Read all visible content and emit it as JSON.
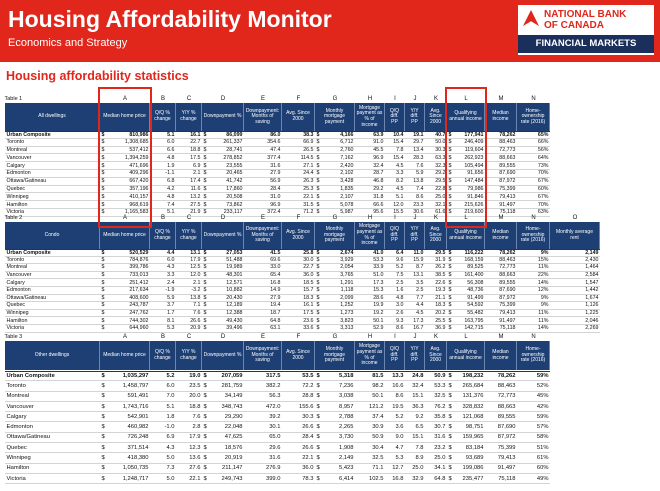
{
  "header": {
    "title": "Housing Affordability Monitor",
    "subtitle": "Economics and Strategy",
    "logo": {
      "line1": "NATIONAL BANK",
      "line2": "OF CANADA",
      "line3": "FINANCIAL MARKETS"
    }
  },
  "section_title": "Housing affordability statistics",
  "currency": "$",
  "tables": [
    {
      "label": "Table 1",
      "letters": [
        "A",
        "B",
        "C",
        "D",
        "E",
        "F",
        "G",
        "H",
        "I",
        "J",
        "K",
        "L",
        "M",
        "N"
      ],
      "columns": [
        "All dwellings",
        "Median home price",
        "Q/Q % change",
        "Y/Y % change",
        "Downpayment %",
        "Downpayment: Months of saving",
        "Avg. Since 2000",
        "Monthly mortgage payment",
        "Mortgage payment as % of income",
        "Q/Q diff. PP",
        "Y/Y diff. PP",
        "Avg. Since 2000",
        "Qualifying annual income",
        "Median income",
        "Home-ownership rate (2016)"
      ],
      "rows": [
        [
          "Urban Composite",
          "810,986",
          "5.1",
          "16.1",
          "86,099",
          "86.0",
          "38.3",
          "4,166",
          "63.9",
          "10.4",
          "19.1",
          "40.7",
          "177,941",
          "78,262",
          "65%"
        ],
        [
          "Toronto",
          "1,308,685",
          "6.0",
          "22.7",
          "261,337",
          "354.6",
          "66.9",
          "6,712",
          "91.0",
          "15.4",
          "29.7",
          "50.0",
          "246,409",
          "88,463",
          "66%"
        ],
        [
          "Montreal",
          "537,412",
          "6.6",
          "18.8",
          "28,741",
          "47.4",
          "26.5",
          "2,760",
          "45.5",
          "7.8",
          "13.4",
          "30.3",
          "119,604",
          "72,773",
          "56%"
        ],
        [
          "Vancouver",
          "1,394,259",
          "4.8",
          "17.5",
          "278,852",
          "377.4",
          "114.5",
          "7,162",
          "96.9",
          "15.4",
          "28.3",
          "63.3",
          "262,923",
          "88,663",
          "64%"
        ],
        [
          "Calgary",
          "471,696",
          "1.9",
          "6.9",
          "23,555",
          "31.6",
          "27.1",
          "2,420",
          "32.4",
          "4.5",
          "7.6",
          "32.3",
          "105,494",
          "89,555",
          "73%"
        ],
        [
          "Edmonton",
          "409,296",
          "-1.1",
          "2.1",
          "20,465",
          "27.9",
          "24.4",
          "2,102",
          "28.7",
          "3.3",
          "5.9",
          "29.2",
          "91,656",
          "87,690",
          "70%"
        ],
        [
          "Ottawa/Gatineau",
          "667,420",
          "6.8",
          "17.4",
          "41,742",
          "56.9",
          "26.3",
          "3,428",
          "46.8",
          "8.2",
          "13.8",
          "29.5",
          "147,484",
          "87,972",
          "67%"
        ],
        [
          "Quebec",
          "357,196",
          "4.2",
          "11.6",
          "17,860",
          "28.4",
          "25.3",
          "1,835",
          "29.2",
          "4.5",
          "7.4",
          "22.8",
          "79,986",
          "75,399",
          "60%"
        ],
        [
          "Winnipeg",
          "410,157",
          "4.8",
          "13.2",
          "20,508",
          "31.0",
          "22.1",
          "2,107",
          "31.8",
          "5.1",
          "8.6",
          "25.0",
          "91,846",
          "79,413",
          "67%"
        ],
        [
          "Hamilton",
          "968,619",
          "7.4",
          "27.5",
          "73,862",
          "96.9",
          "31.5",
          "5,078",
          "66.6",
          "12.0",
          "23.3",
          "32.1",
          "215,626",
          "91,497",
          "70%"
        ],
        [
          "Victoria",
          "1,165,583",
          "5.1",
          "21.9",
          "233,117",
          "372.4",
          "71.2",
          "5,987",
          "95.6",
          "15.5",
          "30.6",
          "61.6",
          "219,600",
          "75,118",
          "63%"
        ]
      ]
    },
    {
      "label": "Table 2",
      "letters": [
        "A",
        "B",
        "C",
        "D",
        "E",
        "F",
        "G",
        "H",
        "I",
        "J",
        "K",
        "L",
        "M",
        "N",
        "O"
      ],
      "columns": [
        "Condo",
        "Median home price",
        "Q/Q % change",
        "Y/Y % change",
        "Downpayment %",
        "Downpayment: Months of saving",
        "Avg. Since 2000",
        "Monthly mortgage payment",
        "Mortgage payment as % of income",
        "Q/Q diff. PP",
        "Y/Y diff. PP",
        "Avg. Since 2000",
        "Qualifying annual income",
        "Median income",
        "Home-ownership rate (2016)",
        "Monthly average rent"
      ],
      "rows": [
        [
          "Urban Composite",
          "520,529",
          "4.4",
          "13.1",
          "27,053",
          "41.5",
          "25.8",
          "2,674",
          "41.0",
          "6.4",
          "11.0",
          "29.5",
          "116,222",
          "78,262",
          "9%",
          "2,149"
        ],
        [
          "Toronto",
          "784,876",
          "6.0",
          "17.9",
          "51,488",
          "69.6",
          "30.0",
          "3,929",
          "53.3",
          "9.6",
          "15.9",
          "31.9",
          "168,159",
          "88,463",
          "15%",
          "2,430"
        ],
        [
          "Montreal",
          "399,786",
          "4.3",
          "12.5",
          "19,989",
          "33.0",
          "22.7",
          "2,054",
          "33.9",
          "5.2",
          "8.7",
          "26.2",
          "89,525",
          "72,773",
          "11%",
          "1,464"
        ],
        [
          "Vancouver",
          "733,013",
          "3.3",
          "12.0",
          "48,301",
          "65.4",
          "36.0",
          "3,765",
          "51.0",
          "7.5",
          "13.1",
          "38.5",
          "161,400",
          "88,663",
          "22%",
          "2,584"
        ],
        [
          "Calgary",
          "251,412",
          "2.4",
          "2.1",
          "12,571",
          "16.8",
          "18.5",
          "1,291",
          "17.3",
          "2.5",
          "3.5",
          "22.6",
          "56,308",
          "89,555",
          "14%",
          "1,547"
        ],
        [
          "Edmonton",
          "217,634",
          "-1.9",
          "-3.2",
          "10,882",
          "14.9",
          "15.7",
          "1,118",
          "15.3",
          "1.6",
          "2.5",
          "19.3",
          "48,736",
          "87,690",
          "12%",
          "1,442"
        ],
        [
          "Ottawa/Gatineau",
          "408,600",
          "5.9",
          "13.8",
          "20,430",
          "27.9",
          "18.3",
          "2,099",
          "28.6",
          "4.8",
          "7.7",
          "21.1",
          "91,499",
          "87,972",
          "9%",
          "1,674"
        ],
        [
          "Quebec",
          "243,787",
          "3.7",
          "7.1",
          "12,189",
          "19.4",
          "16.1",
          "1,252",
          "19.9",
          "3.0",
          "4.4",
          "18.3",
          "54,592",
          "75,399",
          "9%",
          "1,126"
        ],
        [
          "Winnipeg",
          "247,762",
          "1.7",
          "7.6",
          "12,388",
          "18.7",
          "17.5",
          "1,273",
          "19.2",
          "2.6",
          "4.5",
          "20.2",
          "55,482",
          "79,413",
          "11%",
          "1,225"
        ],
        [
          "Hamilton",
          "744,302",
          "8.1",
          "26.6",
          "49,430",
          "64.8",
          "23.6",
          "3,823",
          "50.1",
          "9.3",
          "17.3",
          "25.5",
          "163,795",
          "91,497",
          "11%",
          "2,046"
        ],
        [
          "Victoria",
          "644,960",
          "5.3",
          "20.9",
          "39,496",
          "63.1",
          "33.6",
          "3,313",
          "52.9",
          "8.6",
          "16.7",
          "36.9",
          "142,715",
          "75,118",
          "14%",
          "2,269"
        ]
      ]
    },
    {
      "label": "Table 3",
      "letters": [
        "A",
        "B",
        "C",
        "D",
        "E",
        "F",
        "G",
        "H",
        "I",
        "J",
        "K",
        "L",
        "M",
        "N"
      ],
      "columns": [
        "Other dwellings",
        "Median home price",
        "Q/Q % change",
        "Y/Y % change",
        "Downpayment %",
        "Downpayment: Months of saving",
        "Avg. Since 2000",
        "Monthly mortgage payment",
        "Mortgage payment as % of income",
        "Q/Q diff. PP",
        "Y/Y diff. PP",
        "Avg. Since 2000",
        "Qualifying annual income",
        "Median income",
        "Home-ownership rate (2016)"
      ],
      "rows": [
        [
          "Urban Composite",
          "1,035,297",
          "5.2",
          "19.0",
          "207,059",
          "317.5",
          "53.5",
          "5,318",
          "81.5",
          "13.3",
          "24.8",
          "50.9",
          "198,232",
          "78,262",
          "59%"
        ],
        [
          "Toronto",
          "1,458,797",
          "6.0",
          "23.5",
          "281,759",
          "382.2",
          "72.2",
          "7,236",
          "98.2",
          "16.6",
          "32.4",
          "53.3",
          "265,684",
          "88,463",
          "52%"
        ],
        [
          "Montreal",
          "591,491",
          "7.0",
          "20.0",
          "34,149",
          "56.3",
          "28.8",
          "3,038",
          "50.1",
          "8.6",
          "15.1",
          "32.5",
          "131,376",
          "72,773",
          "45%"
        ],
        [
          "Vancouver",
          "1,743,716",
          "5.1",
          "18.8",
          "348,743",
          "472.0",
          "155.6",
          "8,957",
          "121.2",
          "19.5",
          "36.3",
          "76.2",
          "328,832",
          "88,663",
          "42%"
        ],
        [
          "Calgary",
          "542,901",
          "1.8",
          "7.6",
          "29,290",
          "39.2",
          "30.3",
          "2,788",
          "37.4",
          "5.2",
          "9.2",
          "35.8",
          "121,068",
          "89,555",
          "59%"
        ],
        [
          "Edmonton",
          "460,982",
          "-1.0",
          "2.8",
          "22,048",
          "30.1",
          "26.6",
          "2,265",
          "30.9",
          "3.6",
          "6.5",
          "30.7",
          "98,751",
          "87,690",
          "57%"
        ],
        [
          "Ottawa/Gatineau",
          "726,248",
          "6.9",
          "17.9",
          "47,625",
          "65.0",
          "28.4",
          "3,730",
          "50.9",
          "9.0",
          "15.1",
          "31.6",
          "159,965",
          "87,972",
          "58%"
        ],
        [
          "Quebec",
          "371,514",
          "4.3",
          "12.3",
          "18,576",
          "29.6",
          "26.6",
          "1,908",
          "30.4",
          "4.7",
          "7.8",
          "23.2",
          "83,184",
          "75,399",
          "51%"
        ],
        [
          "Winnipeg",
          "418,380",
          "5.0",
          "13.6",
          "20,919",
          "31.6",
          "22.1",
          "2,149",
          "32.5",
          "5.3",
          "8.9",
          "25.0",
          "93,689",
          "79,413",
          "61%"
        ],
        [
          "Hamilton",
          "1,050,735",
          "7.3",
          "27.6",
          "211,147",
          "276.9",
          "36.0",
          "5,423",
          "71.1",
          "12.7",
          "25.0",
          "34.1",
          "199,086",
          "91,497",
          "60%"
        ],
        [
          "Victoria",
          "1,248,717",
          "5.0",
          "22.1",
          "249,743",
          "399.0",
          "78.3",
          "6,414",
          "102.5",
          "16.8",
          "32.9",
          "64.8",
          "235,477",
          "75,118",
          "49%"
        ]
      ]
    }
  ]
}
